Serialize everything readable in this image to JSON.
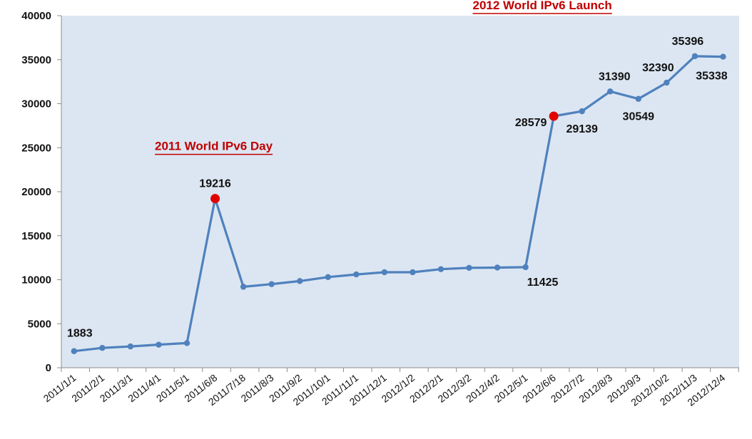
{
  "chart_data": {
    "type": "line",
    "title": "",
    "xlabel": "",
    "ylabel": "",
    "ylim": [
      0,
      40000
    ],
    "yticks": [
      0,
      5000,
      10000,
      15000,
      20000,
      25000,
      30000,
      35000,
      40000
    ],
    "grid": false,
    "legend": "none",
    "categories": [
      "2011/1/1",
      "2011/2/1",
      "2011/3/1",
      "2011/4/1",
      "2011/5/1",
      "2011/6/8",
      "2011/7/18",
      "2011/8/3",
      "2011/9/2",
      "2011/10/1",
      "2011/11/1",
      "2011/12/1",
      "2012/1/2",
      "2012/2/1",
      "2012/3/2",
      "2012/4/2",
      "2012/5/1",
      "2012/6/6",
      "2012/7/2",
      "2012/8/3",
      "2012/9/3",
      "2012/10/2",
      "2012/11/3",
      "2012/12/4"
    ],
    "series": [
      {
        "values": [
          1883,
          2250,
          2420,
          2620,
          2800,
          19216,
          9200,
          9500,
          9850,
          10300,
          10600,
          10850,
          10850,
          11200,
          11350,
          11380,
          11425,
          28579,
          29139,
          31390,
          30549,
          32390,
          35396,
          35338
        ],
        "color": "#4f81bd"
      }
    ],
    "data_labels": [
      {
        "index": 0,
        "text": "1883"
      },
      {
        "index": 5,
        "text": "19216"
      },
      {
        "index": 16,
        "text": "11425"
      },
      {
        "index": 17,
        "text": "28579"
      },
      {
        "index": 18,
        "text": "29139"
      },
      {
        "index": 19,
        "text": "31390"
      },
      {
        "index": 20,
        "text": "30549"
      },
      {
        "index": 21,
        "text": "32390"
      },
      {
        "index": 22,
        "text": "35396"
      },
      {
        "index": 23,
        "text": "35338"
      }
    ],
    "highlights": [
      {
        "index": 5,
        "annotation": "2011 World IPv6 Day",
        "color": "#e00000"
      },
      {
        "index": 17,
        "annotation": "2012 World IPv6 Launch",
        "color": "#e00000"
      }
    ],
    "colors": {
      "plot_background": "#dce6f2",
      "line": "#4f81bd",
      "annotation_text": "#c00000",
      "marker": "#e00000"
    }
  }
}
